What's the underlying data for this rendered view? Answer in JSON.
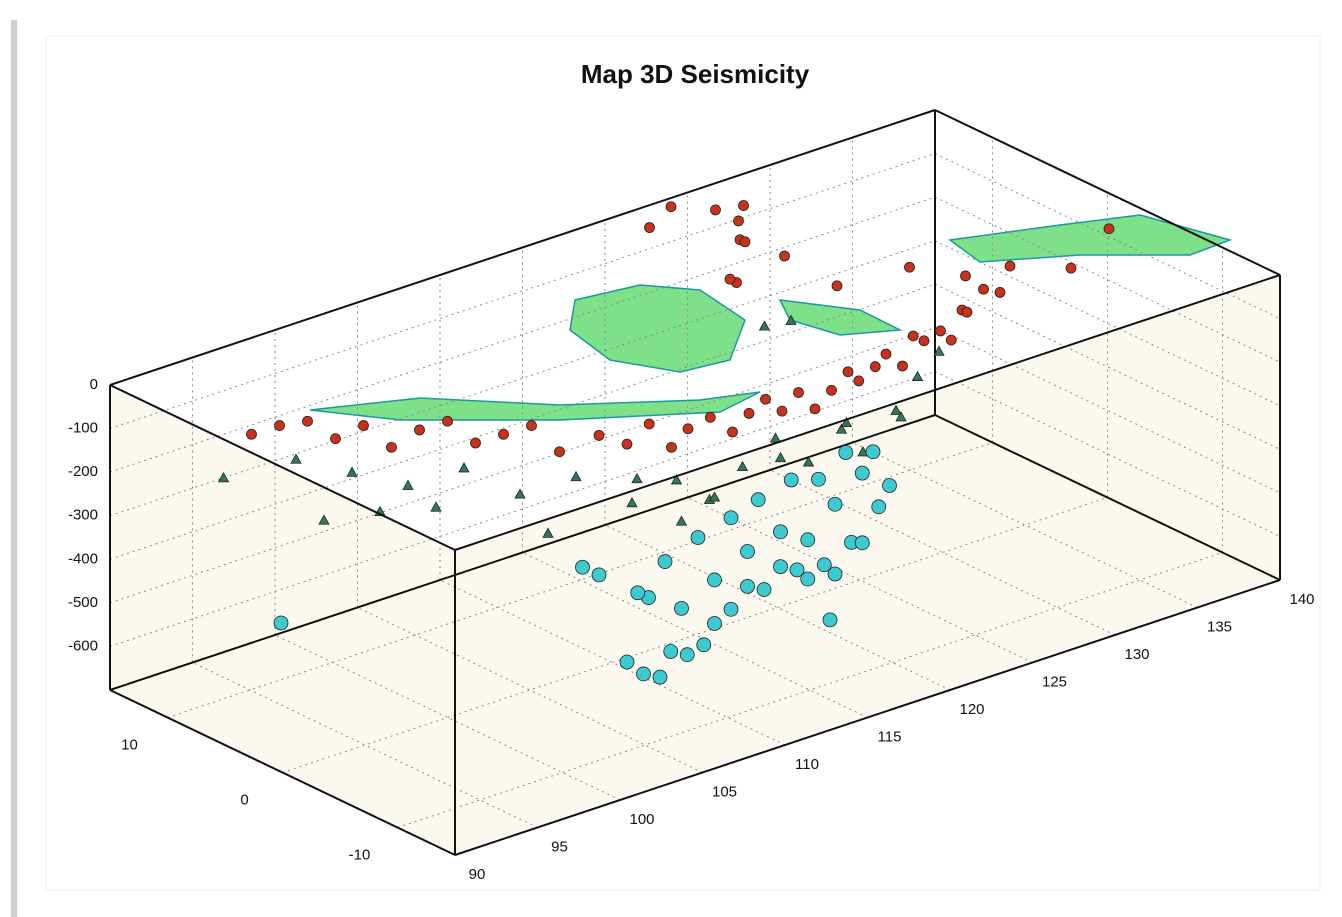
{
  "chart_data": {
    "type": "scatter3d",
    "title": "Map 3D Seismicity",
    "xlim": [
      90,
      140
    ],
    "xticks": [
      90,
      95,
      100,
      105,
      110,
      115,
      120,
      125,
      130,
      135,
      140
    ],
    "ylim": [
      -15,
      15
    ],
    "yticks": [
      -10,
      0,
      10
    ],
    "zlim": [
      -700,
      0
    ],
    "zticks": [
      0,
      -100,
      -200,
      -300,
      -400,
      -500,
      -600
    ],
    "grid": true,
    "series": [
      {
        "color": "#c8321a",
        "marker": "circle",
        "x": [
          95,
          96,
          97,
          98,
          99,
          100,
          101,
          102,
          103,
          104,
          105,
          106,
          107,
          108,
          109,
          110,
          111,
          112,
          113,
          114,
          115,
          116,
          117,
          118,
          119,
          120,
          121,
          122,
          123,
          124,
          125,
          126,
          127,
          128,
          129,
          130,
          121,
          122,
          124,
          125,
          126,
          127,
          126,
          125,
          128,
          130,
          132,
          135,
          138,
          122,
          124,
          126,
          93,
          94
        ],
        "y": [
          5,
          4,
          3,
          2,
          1,
          0,
          -1,
          -2,
          -3,
          -4,
          -6,
          -7,
          -7.5,
          -8,
          -8,
          -8.5,
          -9,
          -9,
          -9,
          -9,
          -9,
          -9,
          -9,
          -9,
          -8.5,
          -8.5,
          -8,
          -8,
          -7.5,
          -7,
          -7,
          -6.5,
          -6,
          -5,
          -5,
          -5,
          5,
          7,
          9,
          10,
          12,
          13,
          8,
          2,
          0,
          -2,
          -3,
          -4,
          -3,
          14,
          15,
          14,
          7,
          6
        ],
        "z": [
          -20,
          -60,
          -30,
          -80,
          -40,
          -20,
          -70,
          -50,
          -30,
          -90,
          -40,
          -60,
          -20,
          -80,
          -50,
          -30,
          -70,
          -40,
          -20,
          -60,
          -30,
          -80,
          -50,
          -20,
          -60,
          -40,
          -30,
          -70,
          -20,
          -50,
          -40,
          -80,
          -30,
          -60,
          -20,
          -40,
          -30,
          -60,
          -20,
          -50,
          -40,
          -30,
          -70,
          -50,
          -20,
          -40,
          -30,
          -60,
          -20,
          -30,
          -20,
          -40,
          -50,
          -30
        ]
      },
      {
        "color": "#2f7a55",
        "marker": "triangle",
        "x": [
          95,
          97,
          99,
          101,
          103,
          105,
          107,
          109,
          111,
          113,
          115,
          117,
          119,
          121,
          123,
          125,
          127,
          96,
          100,
          104,
          108,
          112,
          116,
          120,
          124,
          122,
          125,
          92,
          98,
          110
        ],
        "y": [
          6,
          4,
          2,
          0,
          -2,
          -4,
          -6,
          -7,
          -7,
          -7,
          -7,
          -7,
          -7,
          -6,
          -6,
          -5,
          -4,
          5,
          1,
          -3,
          -5,
          -6,
          -6,
          -6,
          -5,
          4,
          6,
          8,
          3,
          -6
        ],
        "z": [
          -120,
          -150,
          -180,
          -140,
          -200,
          -160,
          -220,
          -180,
          -250,
          -200,
          -160,
          -240,
          -190,
          -280,
          -210,
          -170,
          -150,
          -260,
          -230,
          -290,
          -190,
          -270,
          -230,
          -200,
          -250,
          -130,
          -180,
          -150,
          -240,
          -300
        ]
      },
      {
        "color": "#3cc9d0",
        "marker": "circle",
        "x": [
          106,
          107,
          108,
          109,
          110,
          111,
          112,
          113,
          114,
          115,
          116,
          117,
          118,
          119,
          120,
          121,
          122,
          123,
          124,
          108,
          110,
          112,
          114,
          116,
          118,
          120,
          122,
          105,
          107,
          109,
          111,
          113,
          115,
          117,
          119,
          121,
          123,
          92,
          104,
          119
        ],
        "y": [
          -7,
          -7,
          -7,
          -6.5,
          -6.5,
          -6.5,
          -6,
          -6,
          -6,
          -6,
          -6,
          -6,
          -5.5,
          -5.5,
          -5,
          -5,
          -4.5,
          -4.5,
          -4,
          -6,
          -6,
          -6,
          -6,
          -6,
          -5.5,
          -5,
          -4.5,
          -6,
          -6.5,
          -6,
          -6,
          -6,
          -5.5,
          -5.5,
          -5,
          -4.5,
          -4,
          3,
          -6,
          -6
        ],
        "z": [
          -560,
          -600,
          -620,
          -580,
          -600,
          -590,
          -560,
          -540,
          -500,
          -520,
          -480,
          -500,
          -540,
          -520,
          -560,
          -500,
          -520,
          -450,
          -420,
          -450,
          -500,
          -460,
          -420,
          -400,
          -450,
          -400,
          -360,
          -360,
          -420,
          -380,
          -350,
          -330,
          -320,
          -300,
          -330,
          -300,
          -330,
          -420,
          -330,
          -640
        ]
      }
    ]
  }
}
